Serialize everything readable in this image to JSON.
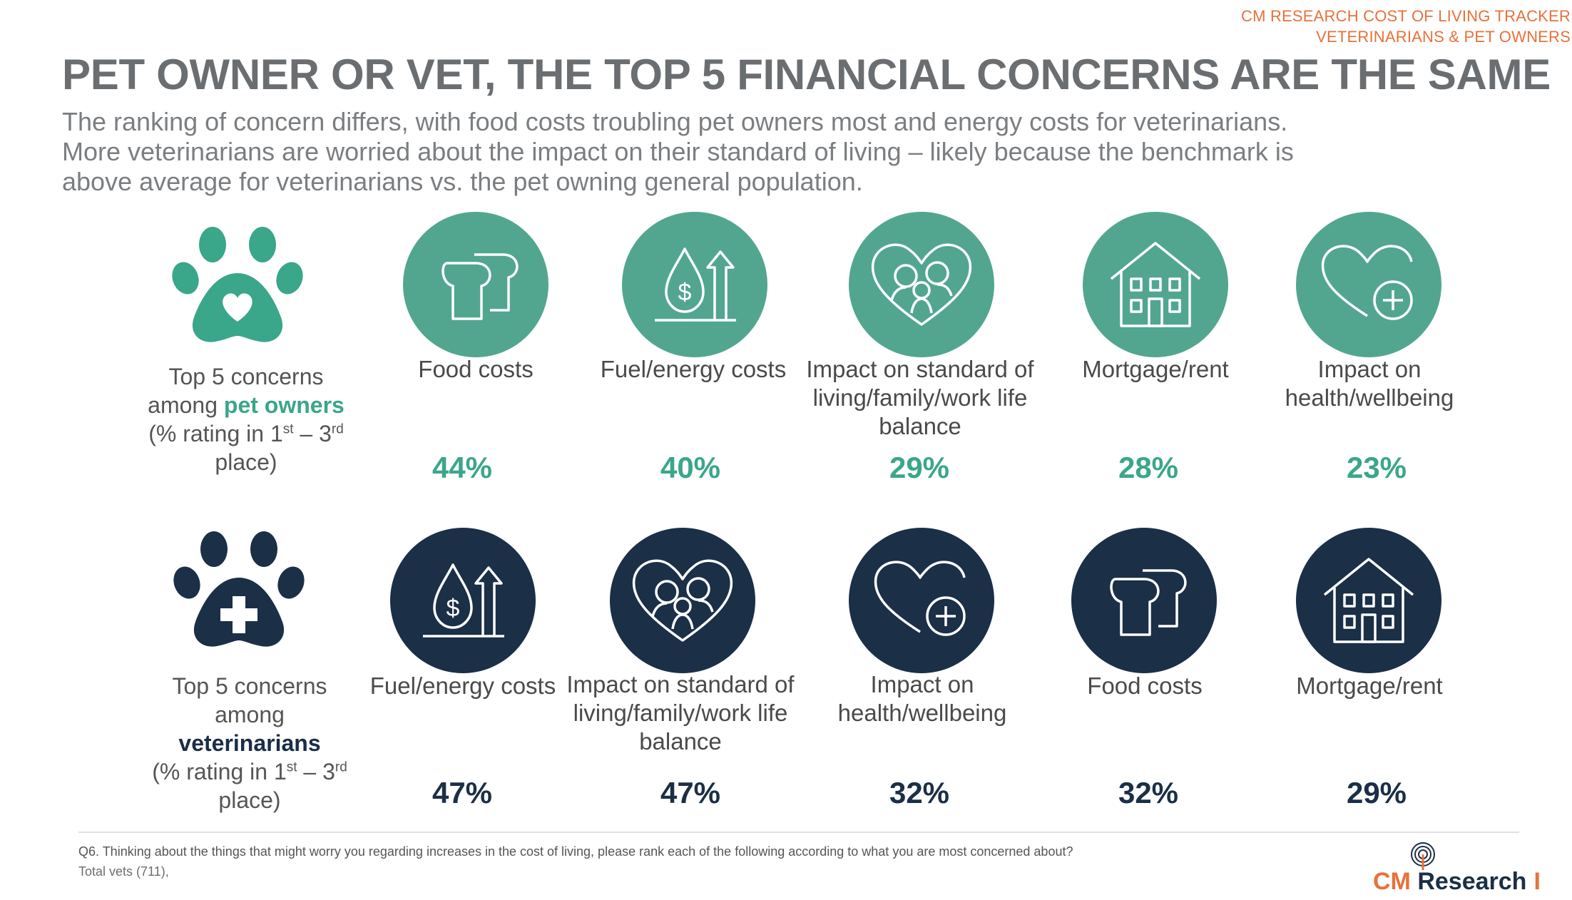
{
  "header": {
    "tracker_line1": "CM RESEARCH COST OF LIVING TRACKER",
    "tracker_line2": "VETERINARIANS & PET OWNERS"
  },
  "title": "PET OWNER OR VET, THE TOP 5 FINANCIAL CONCERNS ARE THE SAME",
  "subtitle": "The ranking of concern differs, with food costs troubling pet owners most and energy costs for veterinarians. More veterinarians are worried about the impact on their standard of living – likely because the benchmark is above average for veterinarians vs. the pet owning general population.",
  "rows": {
    "owners": {
      "label_line1": "Top 5 concerns",
      "label_pre": "among ",
      "label_highlight": "pet owners",
      "label_rating_pre": "(% rating in 1",
      "label_sup1": "st",
      "label_rating_mid": " – 3",
      "label_sup2": "rd",
      "label_rating_end": "place)",
      "items": [
        {
          "icon": "bread-icon",
          "label": "Food costs",
          "value": "44%"
        },
        {
          "icon": "fuel-energy-icon",
          "label": "Fuel/energy costs",
          "value": "40%"
        },
        {
          "icon": "family-heart-icon",
          "label": "Impact on standard of living/family/work life balance",
          "value": "29%"
        },
        {
          "icon": "house-icon",
          "label": "Mortgage/rent",
          "value": "28%"
        },
        {
          "icon": "heart-plus-icon",
          "label": "Impact on health/wellbeing",
          "value": "23%"
        }
      ]
    },
    "vets": {
      "label_line1": "Top 5 concerns",
      "label_line2": "among",
      "label_highlight": "veterinarians",
      "label_rating_pre": "(% rating in 1",
      "label_sup1": "st",
      "label_rating_mid": " – 3",
      "label_sup2": "rd",
      "label_rating_end": "place)",
      "items": [
        {
          "icon": "fuel-energy-icon",
          "label": "Fuel/energy costs",
          "value": "47%"
        },
        {
          "icon": "family-heart-icon",
          "label": "Impact on standard of living/family/work life balance",
          "value": "47%"
        },
        {
          "icon": "heart-plus-icon",
          "label": "Impact on health/wellbeing",
          "value": "32%"
        },
        {
          "icon": "bread-icon",
          "label": "Food costs",
          "value": "32%"
        },
        {
          "icon": "house-icon",
          "label": "Mortgage/rent",
          "value": "29%"
        }
      ]
    }
  },
  "footnote": {
    "question": "Q6. Thinking about the things that might worry you regarding increases in the cost of living, please rank each of the following according to what you are most concerned about?",
    "base": "Total vets (711),"
  },
  "logo": {
    "cm": "CM",
    "research": "Research",
    "bar": "I"
  },
  "colors": {
    "teal": "#52a690",
    "navy": "#1b2f46",
    "orange": "#e8713a"
  }
}
